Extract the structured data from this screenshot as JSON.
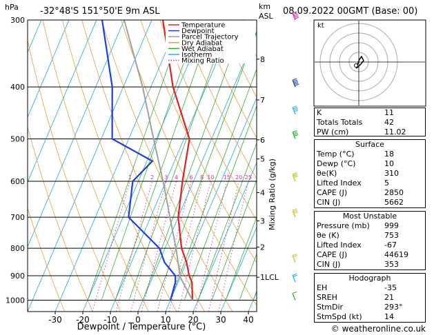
{
  "header": {
    "location": "-32°48'S  151°50'E  9m  ASL",
    "datetime": "08.09.2022  00GMT  (Base: 00)",
    "hpa_unit": "hPa",
    "km_unit": "km",
    "asl_unit": "ASL"
  },
  "legend": [
    {
      "label": "Temperature",
      "color": "#e02020",
      "style": "solid"
    },
    {
      "label": "Dewpoint",
      "color": "#1a3fe0",
      "style": "solid"
    },
    {
      "label": "Parcel Trajectory",
      "color": "#a0a0a0",
      "style": "solid"
    },
    {
      "label": "Dry Adiabat",
      "color": "#e8a030",
      "style": "solid"
    },
    {
      "label": "Wet Adiabat",
      "color": "#30b030",
      "style": "solid"
    },
    {
      "label": "Isotherm",
      "color": "#30b0e0",
      "style": "solid"
    },
    {
      "label": "Mixing Ratio",
      "color": "#d030a0",
      "style": "dotted"
    }
  ],
  "footer": "© weatheronline.co.uk",
  "chart_data": {
    "type": "line",
    "xlabel": "Dewpoint / Temperature (°C)",
    "y_right_label": "Mixing Ratio (g/kg)",
    "x_ticks": [
      -30,
      -20,
      -10,
      0,
      10,
      20,
      30,
      40
    ],
    "xlim": [
      -40,
      43
    ],
    "pressure_ticks": [
      300,
      400,
      500,
      600,
      700,
      800,
      900,
      1000
    ],
    "plim": [
      300,
      1050
    ],
    "km_ticks": [
      {
        "label": "8",
        "p": 355
      },
      {
        "label": "7",
        "p": 423
      },
      {
        "label": "6",
        "p": 502
      },
      {
        "label": "5",
        "p": 545
      },
      {
        "label": "4",
        "p": 630
      },
      {
        "label": "3",
        "p": 711
      },
      {
        "label": "2",
        "p": 796
      },
      {
        "label": "1LCL",
        "p": 906
      }
    ],
    "mixing_ratio_labels": [
      "1",
      "2",
      "3",
      "4",
      "6",
      "8",
      "10",
      "15",
      "20",
      "25"
    ],
    "series": [
      {
        "name": "Temperature",
        "color": "#e02020",
        "points": [
          {
            "p": 1000,
            "t": 18
          },
          {
            "p": 925,
            "t": 15
          },
          {
            "p": 900,
            "t": 13
          },
          {
            "p": 850,
            "t": 10
          },
          {
            "p": 800,
            "t": 6
          },
          {
            "p": 700,
            "t": 0
          },
          {
            "p": 600,
            "t": -4
          },
          {
            "p": 500,
            "t": -8
          },
          {
            "p": 400,
            "t": -22
          },
          {
            "p": 300,
            "t": -36
          }
        ]
      },
      {
        "name": "Dewpoint",
        "color": "#1a3fe0",
        "points": [
          {
            "p": 1000,
            "t": 10
          },
          {
            "p": 925,
            "t": 9
          },
          {
            "p": 900,
            "t": 8
          },
          {
            "p": 850,
            "t": 2
          },
          {
            "p": 800,
            "t": -2
          },
          {
            "p": 700,
            "t": -18
          },
          {
            "p": 600,
            "t": -22
          },
          {
            "p": 550,
            "t": -18
          },
          {
            "p": 500,
            "t": -36
          },
          {
            "p": 400,
            "t": -44
          },
          {
            "p": 300,
            "t": -58
          }
        ]
      },
      {
        "name": "Parcel Trajectory",
        "color": "#a0a0a0",
        "points": [
          {
            "p": 1000,
            "t": 18
          },
          {
            "p": 906,
            "t": 10
          },
          {
            "p": 800,
            "t": 4
          },
          {
            "p": 700,
            "t": -3
          },
          {
            "p": 600,
            "t": -11
          },
          {
            "p": 500,
            "t": -21
          },
          {
            "p": 400,
            "t": -33
          },
          {
            "p": 300,
            "t": -50
          }
        ]
      }
    ],
    "wind_barbs": [
      {
        "p": 1000,
        "dir": 300,
        "kt": 10,
        "color": "#30b030"
      },
      {
        "p": 925,
        "dir": 290,
        "kt": 15,
        "color": "#30b0e0"
      },
      {
        "p": 850,
        "dir": 280,
        "kt": 15,
        "color": "#c8c820"
      },
      {
        "p": 700,
        "dir": 280,
        "kt": 25,
        "color": "#c8c820"
      },
      {
        "p": 600,
        "dir": 270,
        "kt": 30,
        "color": "#c8c820"
      },
      {
        "p": 500,
        "dir": 270,
        "kt": 35,
        "color": "#30b030"
      },
      {
        "p": 450,
        "dir": 270,
        "kt": 40,
        "color": "#30b0e0"
      },
      {
        "p": 400,
        "dir": 270,
        "kt": 50,
        "color": "#1a3fe0"
      },
      {
        "p": 300,
        "dir": 260,
        "kt": 60,
        "color": "#d030a0"
      }
    ]
  },
  "hodograph": {
    "title": "kt"
  },
  "indices": {
    "basic": [
      {
        "label": "K",
        "value": "11"
      },
      {
        "label": "Totals Totals",
        "value": "42"
      },
      {
        "label": "PW (cm)",
        "value": "11.02"
      }
    ],
    "surface": {
      "title": "Surface",
      "rows": [
        {
          "label": "Temp (°C)",
          "value": "18"
        },
        {
          "label": "Dewp (°C)",
          "value": "10"
        },
        {
          "label": "θe(K)",
          "value": "310"
        },
        {
          "label": "Lifted Index",
          "value": "5"
        },
        {
          "label": "CAPE (J)",
          "value": "2850"
        },
        {
          "label": "CIN (J)",
          "value": "5662"
        }
      ]
    },
    "unstable": {
      "title": "Most Unstable",
      "rows": [
        {
          "label": "Pressure (mb)",
          "value": "999"
        },
        {
          "label": "θe (K)",
          "value": "753"
        },
        {
          "label": "Lifted Index",
          "value": "-67"
        },
        {
          "label": "CAPE (J)",
          "value": "44619"
        },
        {
          "label": "CIN (J)",
          "value": "353"
        }
      ]
    },
    "hodograph": {
      "title": "Hodograph",
      "rows": [
        {
          "label": "EH",
          "value": "-35"
        },
        {
          "label": "SREH",
          "value": "21"
        },
        {
          "label": "StmDir",
          "value": "293°"
        },
        {
          "label": "StmSpd (kt)",
          "value": "14"
        }
      ]
    }
  }
}
